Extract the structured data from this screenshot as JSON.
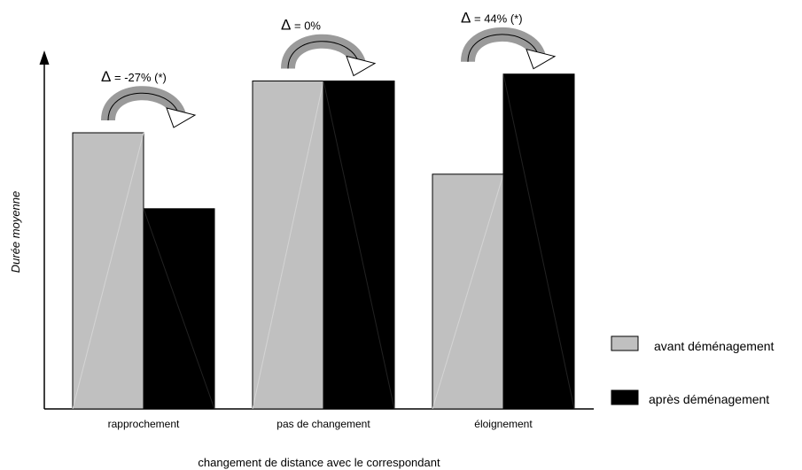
{
  "chart_data": {
    "type": "bar",
    "xlabel": "changement de distance avec le correspondant",
    "ylabel": "Durée moyenne",
    "categories": [
      "rapprochement",
      "pas de changement",
      "éloignement"
    ],
    "series": [
      {
        "name": "avant déménagement",
        "color": "#c0c0c0",
        "values": [
          0.8,
          0.95,
          0.68
        ]
      },
      {
        "name": "après déménagement",
        "color": "#000000",
        "values": [
          0.58,
          0.95,
          0.97
        ]
      }
    ],
    "ylim": [
      0,
      1.0
    ],
    "grid": false,
    "legend_position": "right",
    "annotations": [
      {
        "symbol": "Δ",
        "text": "= -27% (*)"
      },
      {
        "symbol": "Δ",
        "text": "= 0%"
      },
      {
        "symbol": "Δ",
        "text": "= 44% (*)"
      }
    ]
  }
}
